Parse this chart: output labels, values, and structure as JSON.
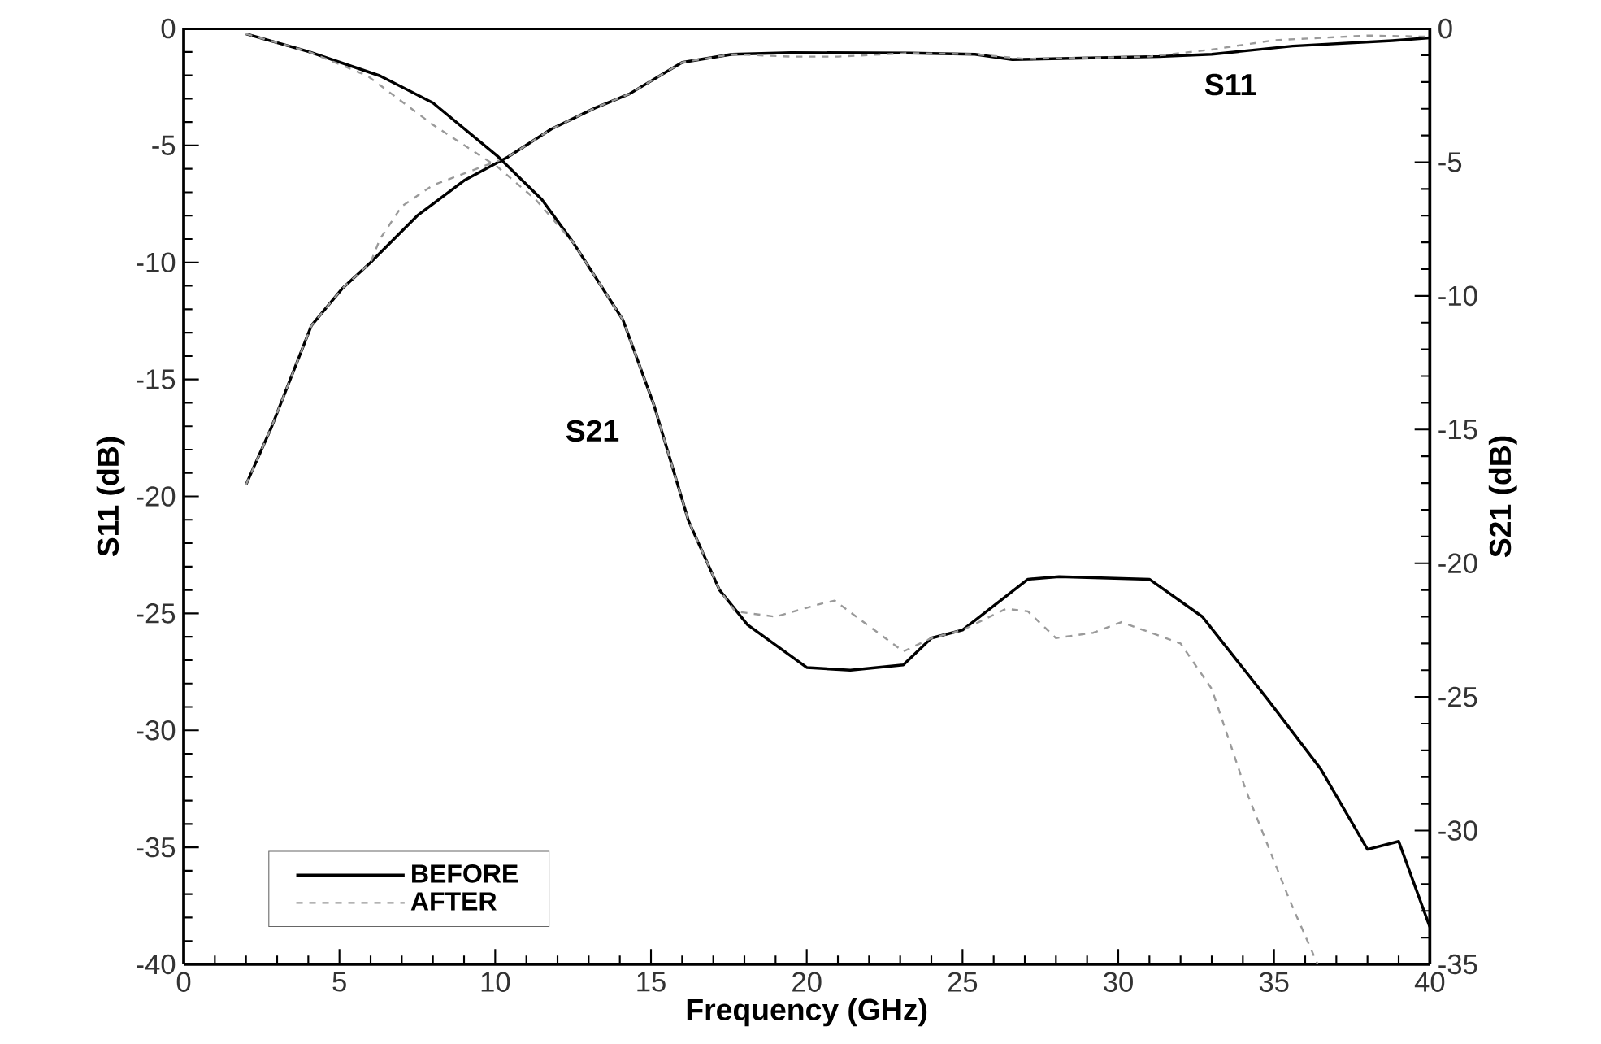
{
  "chart_data": {
    "type": "line",
    "xlabel": "Frequency (GHz)",
    "ylabel": "S11 (dB)",
    "y2label": "S21 (dB)",
    "xlim": [
      0,
      40
    ],
    "xticks": [
      0,
      5,
      10,
      15,
      20,
      25,
      30,
      35,
      40
    ],
    "ylim": [
      -40,
      0
    ],
    "yticks": [
      -40,
      -35,
      -30,
      -25,
      -20,
      -15,
      -10,
      -5,
      0
    ],
    "y2lim": [
      -35,
      0
    ],
    "y2ticks": [
      -35,
      -30,
      -25,
      -20,
      -15,
      -10,
      -5,
      0
    ],
    "grid": false,
    "legend": "bottom left",
    "marker": "none",
    "annotations": [
      "S21",
      "S11"
    ],
    "series": [
      {
        "name": "BEFORE",
        "color": "#000000",
        "line_style": "solid",
        "x": [
          2,
          2.8,
          4.1,
          5.1,
          6,
          7.5,
          9,
          10.4,
          11.8,
          13.2,
          14.3,
          16,
          17.6,
          19.5,
          23.3,
          25.4,
          26.6,
          31.3,
          33,
          35.6,
          38.8,
          40
        ],
        "values": [
          -19.5,
          -17.1,
          -12.7,
          -11.1,
          -10,
          -8,
          -6.5,
          -5.5,
          -4.3,
          -3.4,
          -2.8,
          -1.45,
          -1.1,
          -1.03,
          -1.05,
          -1.1,
          -1.33,
          -1.2,
          -1.1,
          -0.75,
          -0.52,
          -0.4
        ]
      },
      {
        "name": "AFTER",
        "color": "#9a9a9a",
        "line_style": "dashed",
        "x": [
          2,
          2.8,
          4.1,
          5.1,
          6,
          6.3,
          7,
          8,
          9.4,
          10.4,
          11.8,
          13.2,
          14.3,
          16,
          17.6,
          19.5,
          21,
          23.3,
          25.4,
          27,
          31,
          33,
          35,
          38,
          40
        ],
        "values": [
          -19.5,
          -17.1,
          -12.7,
          -11.1,
          -10,
          -9,
          -7.6,
          -6.7,
          -6,
          -5.5,
          -4.3,
          -3.4,
          -2.8,
          -1.45,
          -1.1,
          -1.2,
          -1.2,
          -1.05,
          -1.1,
          -1.3,
          -1.2,
          -0.9,
          -0.5,
          -0.3,
          -0.35
        ]
      },
      {
        "color": "#000000",
        "line_style": "solid",
        "axis": "y2",
        "x": [
          2,
          4,
          6.3,
          8,
          10.1,
          11.5,
          12.5,
          14.1,
          15.1,
          16.2,
          17.2,
          18.1,
          20,
          21.4,
          23.1,
          24,
          25,
          27.1,
          28.1,
          31,
          32.7,
          34.8,
          36.5,
          38,
          39,
          40
        ],
        "values": [
          -0.2,
          -0.86,
          -1.77,
          -2.78,
          -4.8,
          -6.4,
          -8,
          -10.9,
          -14.1,
          -18.4,
          -21,
          -22.3,
          -23.9,
          -24,
          -23.8,
          -22.8,
          -22.5,
          -20.6,
          -20.5,
          -20.6,
          -22,
          -25.1,
          -27.7,
          -30.7,
          -30.4,
          -33.6
        ]
      },
      {
        "color": "#9a9a9a",
        "line_style": "dashed",
        "axis": "y2",
        "x": [
          2,
          4,
          5.9,
          8,
          10.1,
          11.3,
          12.5,
          14.1,
          15.1,
          16.2,
          17.2,
          17.7,
          19,
          20.5,
          20.9,
          23.1,
          24,
          25,
          26.4,
          27.1,
          28,
          29.2,
          30.1,
          32,
          33,
          34.1,
          35.5,
          36.4
        ],
        "values": [
          -0.2,
          -0.86,
          -1.77,
          -3.6,
          -5.2,
          -6.4,
          -8,
          -10.9,
          -14.1,
          -18.4,
          -21,
          -21.8,
          -22,
          -21.5,
          -21.4,
          -23.3,
          -22.8,
          -22.5,
          -21.7,
          -21.8,
          -22.8,
          -22.6,
          -22.2,
          -23,
          -24.7,
          -28.5,
          -32.6,
          -35
        ]
      }
    ]
  }
}
